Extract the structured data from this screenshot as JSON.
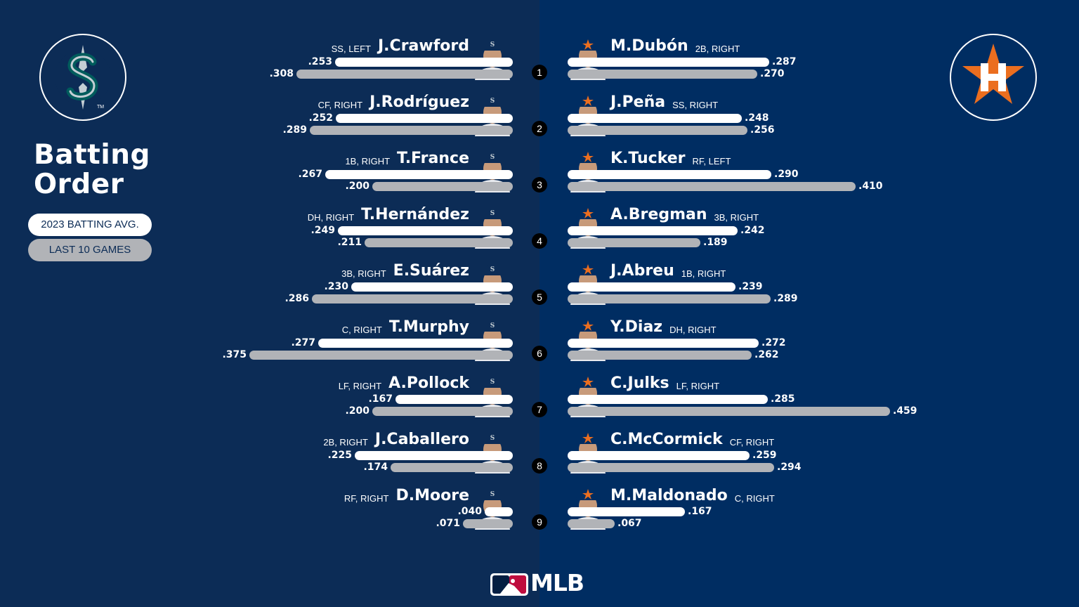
{
  "title_line1": "Batting",
  "title_line2": "Order",
  "legend": {
    "avg": "2023 BATTING AVG.",
    "l10": "LAST 10 GAMES"
  },
  "brand": "MLB",
  "colors": {
    "mariners_navy": "#0c2c56",
    "mariners_teal": "#005c5c",
    "astros_navy": "#002d62",
    "astros_orange": "#eb6e1f",
    "last10_gray": "#b1b3b7"
  },
  "chart_data": {
    "type": "bar",
    "series": [
      {
        "name": "2023 BATTING AVG."
      },
      {
        "name": "LAST 10 GAMES"
      }
    ],
    "teams": [
      {
        "side": "left",
        "logo": "seattle-mariners-logo",
        "players": [
          {
            "order": "1",
            "name": "J.Crawford",
            "pos": "SS, LEFT",
            "avg": ".253",
            "l10": ".308",
            "avg_n": 0.253,
            "l10_n": 0.308
          },
          {
            "order": "2",
            "name": "J.Rodríguez",
            "pos": "CF, RIGHT",
            "avg": ".252",
            "l10": ".289",
            "avg_n": 0.252,
            "l10_n": 0.289
          },
          {
            "order": "3",
            "name": "T.France",
            "pos": "1B, RIGHT",
            "avg": ".267",
            "l10": ".200",
            "avg_n": 0.267,
            "l10_n": 0.2
          },
          {
            "order": "4",
            "name": "T.Hernández",
            "pos": "DH, RIGHT",
            "avg": ".249",
            "l10": ".211",
            "avg_n": 0.249,
            "l10_n": 0.211
          },
          {
            "order": "5",
            "name": "E.Suárez",
            "pos": "3B, RIGHT",
            "avg": ".230",
            "l10": ".286",
            "avg_n": 0.23,
            "l10_n": 0.286
          },
          {
            "order": "6",
            "name": "T.Murphy",
            "pos": "C, RIGHT",
            "avg": ".277",
            "l10": ".375",
            "avg_n": 0.277,
            "l10_n": 0.375
          },
          {
            "order": "7",
            "name": "A.Pollock",
            "pos": "LF, RIGHT",
            "avg": ".167",
            "l10": ".200",
            "avg_n": 0.167,
            "l10_n": 0.2
          },
          {
            "order": "8",
            "name": "J.Caballero",
            "pos": "2B, RIGHT",
            "avg": ".225",
            "l10": ".174",
            "avg_n": 0.225,
            "l10_n": 0.174
          },
          {
            "order": "9",
            "name": "D.Moore",
            "pos": "RF, RIGHT",
            "avg": ".040",
            "l10": ".071",
            "avg_n": 0.04,
            "l10_n": 0.071
          }
        ]
      },
      {
        "side": "right",
        "logo": "houston-astros-logo",
        "players": [
          {
            "order": "1",
            "name": "M.Dubón",
            "pos": "2B, RIGHT",
            "avg": ".287",
            "l10": ".270",
            "avg_n": 0.287,
            "l10_n": 0.27
          },
          {
            "order": "2",
            "name": "J.Peña",
            "pos": "SS, RIGHT",
            "avg": ".248",
            "l10": ".256",
            "avg_n": 0.248,
            "l10_n": 0.256
          },
          {
            "order": "3",
            "name": "K.Tucker",
            "pos": "RF, LEFT",
            "avg": ".290",
            "l10": ".410",
            "avg_n": 0.29,
            "l10_n": 0.41
          },
          {
            "order": "4",
            "name": "A.Bregman",
            "pos": "3B, RIGHT",
            "avg": ".242",
            "l10": ".189",
            "avg_n": 0.242,
            "l10_n": 0.189
          },
          {
            "order": "5",
            "name": "J.Abreu",
            "pos": "1B, RIGHT",
            "avg": ".239",
            "l10": ".289",
            "avg_n": 0.239,
            "l10_n": 0.289
          },
          {
            "order": "6",
            "name": "Y.Diaz",
            "pos": "DH, RIGHT",
            "avg": ".272",
            "l10": ".262",
            "avg_n": 0.272,
            "l10_n": 0.262
          },
          {
            "order": "7",
            "name": "C.Julks",
            "pos": "LF, RIGHT",
            "avg": ".285",
            "l10": ".459",
            "avg_n": 0.285,
            "l10_n": 0.459
          },
          {
            "order": "8",
            "name": "C.McCormick",
            "pos": "CF, RIGHT",
            "avg": ".259",
            "l10": ".294",
            "avg_n": 0.259,
            "l10_n": 0.294
          },
          {
            "order": "9",
            "name": "M.Maldonado",
            "pos": "C, RIGHT",
            "avg": ".167",
            "l10": ".067",
            "avg_n": 0.167,
            "l10_n": 0.067
          }
        ]
      }
    ]
  }
}
